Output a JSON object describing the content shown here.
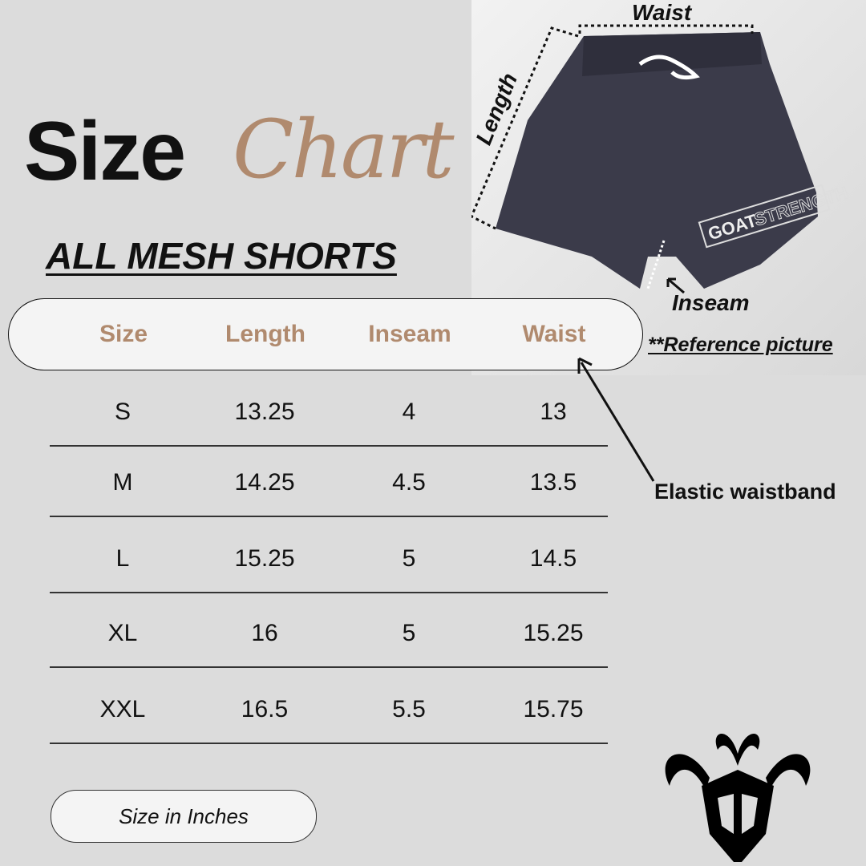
{
  "title": {
    "size": "Size",
    "chart": "Chart"
  },
  "subtitle": "ALL MESH SHORTS",
  "table": {
    "headers": [
      "Size",
      "Length",
      "Inseam",
      "Waist"
    ],
    "rows": [
      [
        "S",
        "13.25",
        "4",
        "13"
      ],
      [
        "M",
        "14.25",
        "4.5",
        "13.5"
      ],
      [
        "L",
        "15.25",
        "5",
        "14.5"
      ],
      [
        "XL",
        "16",
        "5",
        "15.25"
      ],
      [
        "XXL",
        "16.5",
        "5.5",
        "15.75"
      ]
    ]
  },
  "units": "Size in Inches",
  "photo": {
    "waist_label": "Waist",
    "length_label": "Length",
    "inseam_label": "Inseam",
    "reference": "**Reference picture",
    "print_goat": "GOAT",
    "print_strength": "STRENGTH"
  },
  "callout": "Elastic waistband",
  "colors": {
    "accent": "#b08a6e",
    "background": "#dcdcdc",
    "shorts": "#3b3b4a"
  },
  "logo": "goat-head-logo"
}
